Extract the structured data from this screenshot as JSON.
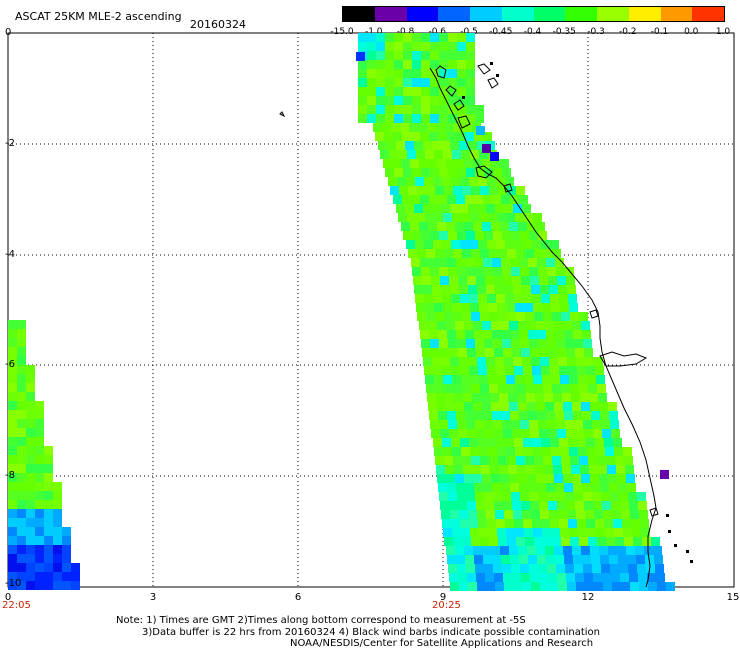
{
  "header": {
    "title": "ASCAT 25KM MLE-2 ascending",
    "date": "20160324"
  },
  "colorbar": {
    "labels": [
      "-15.0",
      "-1.0",
      "-0.8",
      "-0.6",
      "-0.5",
      "-0.45",
      "-0.4",
      "-0.35",
      "-0.3",
      "-0.2",
      "-0.1",
      "0.0",
      "1.0"
    ],
    "colors": [
      "#000000",
      "#6a00a8",
      "#0000ff",
      "#0066ff",
      "#00ccff",
      "#00ffcc",
      "#00ff66",
      "#33ff00",
      "#99ff00",
      "#ffee00",
      "#ff9900",
      "#ff3300"
    ]
  },
  "axes": {
    "x_ticks": [
      "0",
      "3",
      "6",
      "9",
      "12",
      "15"
    ],
    "y_ticks": [
      "0",
      "-2",
      "-4",
      "-6",
      "-8",
      "-10"
    ],
    "time_labels": [
      "22:05",
      "20:25"
    ]
  },
  "notes": {
    "line1": "Note: 1) Times are GMT 2)Times along bottom correspond to measurement at -5S",
    "line2": "3)Data buffer is 22 hrs from 20160324 4) Black wind barbs indicate possible contamination",
    "line3": "NOAA/NESDIS/Center for Satellite Applications and Research"
  }
}
